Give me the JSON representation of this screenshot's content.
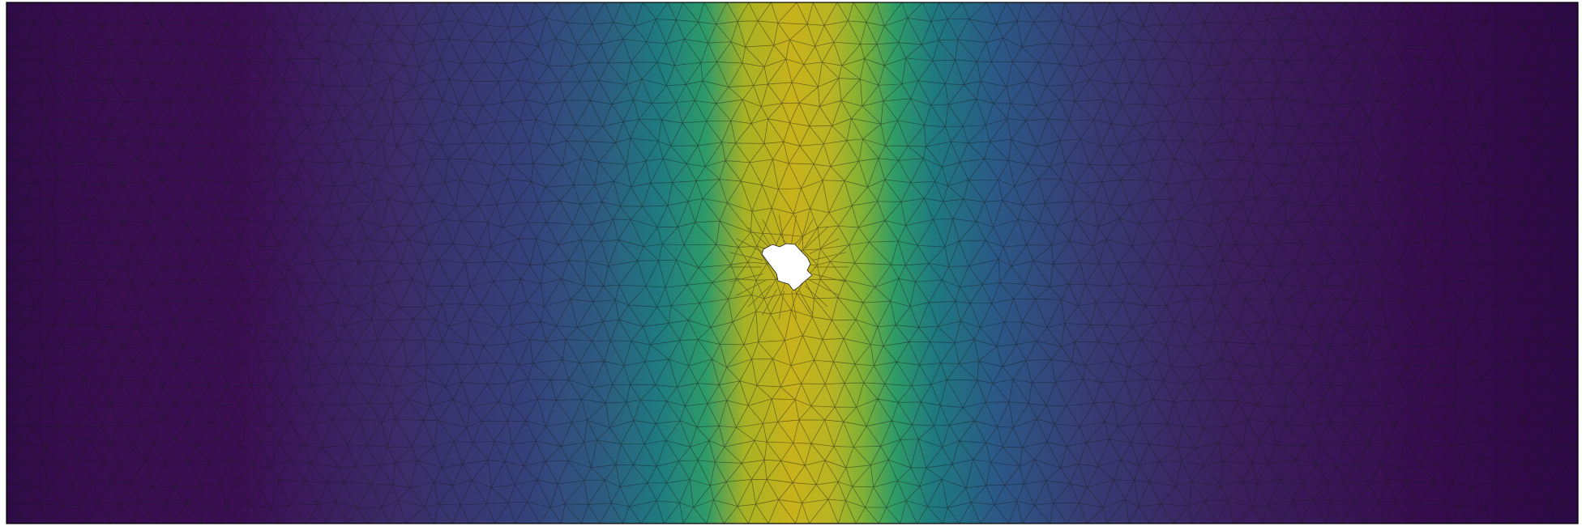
{
  "figure": {
    "kind": "finite-element mesh with scalar field",
    "colormap": "viridis",
    "field_colors": [
      "#440154",
      "#3b528b",
      "#21918c",
      "#5ec962",
      "#bddf26"
    ],
    "mesh_edge_color": "#1a1a1a",
    "background": "#ffffff",
    "border_color": "#000000",
    "hole_fill": "#ffffff"
  }
}
